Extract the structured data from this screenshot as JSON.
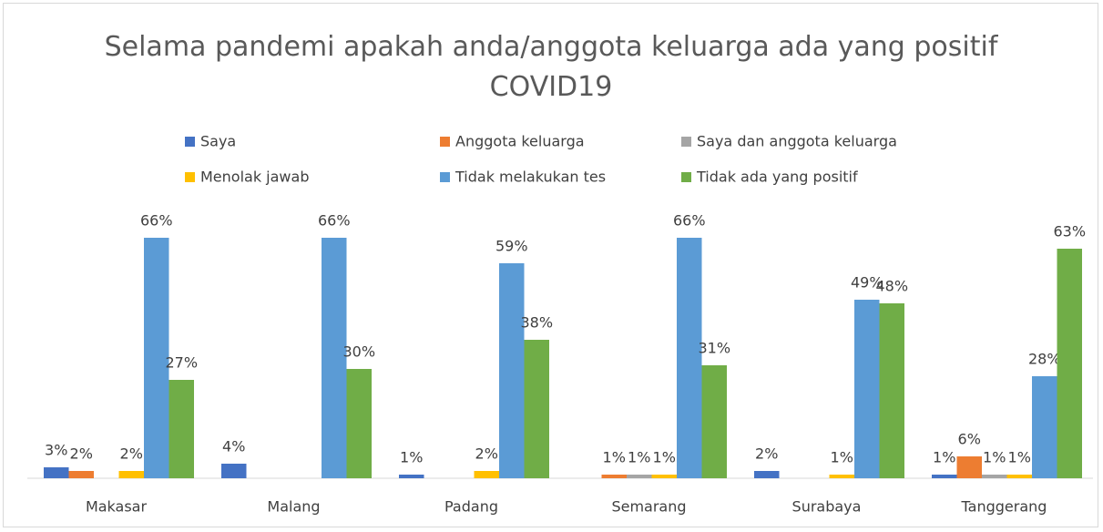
{
  "chart_data": {
    "type": "bar",
    "title": "Selama pandemi apakah anda/anggota keluarga ada yang positif COVID19",
    "categories": [
      "Makasar",
      "Malang",
      "Padang",
      "Semarang",
      "Surabaya",
      "Tanggerang"
    ],
    "legend": "top",
    "series": [
      {
        "name": "Saya",
        "color": "#4472c4",
        "values": [
          3,
          4,
          1,
          null,
          2,
          1
        ],
        "value_labels": [
          "3%",
          "4%",
          "1%",
          null,
          "2%",
          "1%"
        ]
      },
      {
        "name": "Anggota keluarga",
        "color": "#ed7d31",
        "values": [
          2,
          null,
          null,
          1,
          null,
          6
        ],
        "value_labels": [
          "2%",
          null,
          null,
          "1%",
          null,
          "6%"
        ]
      },
      {
        "name": "Saya dan anggota keluarga",
        "color": "#a5a5a5",
        "values": [
          null,
          null,
          null,
          1,
          null,
          1
        ],
        "value_labels": [
          null,
          null,
          null,
          "1%",
          null,
          "1%"
        ]
      },
      {
        "name": "Menolak jawab",
        "color": "#ffc000",
        "values": [
          2,
          null,
          2,
          1,
          1,
          1
        ],
        "value_labels": [
          "2%",
          null,
          "2%",
          "1%",
          "1%",
          "1%"
        ]
      },
      {
        "name": "Tidak melakukan tes",
        "color": "#5b9bd5",
        "values": [
          66,
          66,
          59,
          66,
          49,
          28
        ],
        "value_labels": [
          "66%",
          "66%",
          "59%",
          "66%",
          "49%",
          "28%"
        ]
      },
      {
        "name": "Tidak ada yang positif",
        "color": "#70ad47",
        "values": [
          27,
          30,
          38,
          31,
          48,
          63
        ],
        "value_labels": [
          "27%",
          "30%",
          "38%",
          "31%",
          "48%",
          "63%"
        ]
      }
    ]
  }
}
